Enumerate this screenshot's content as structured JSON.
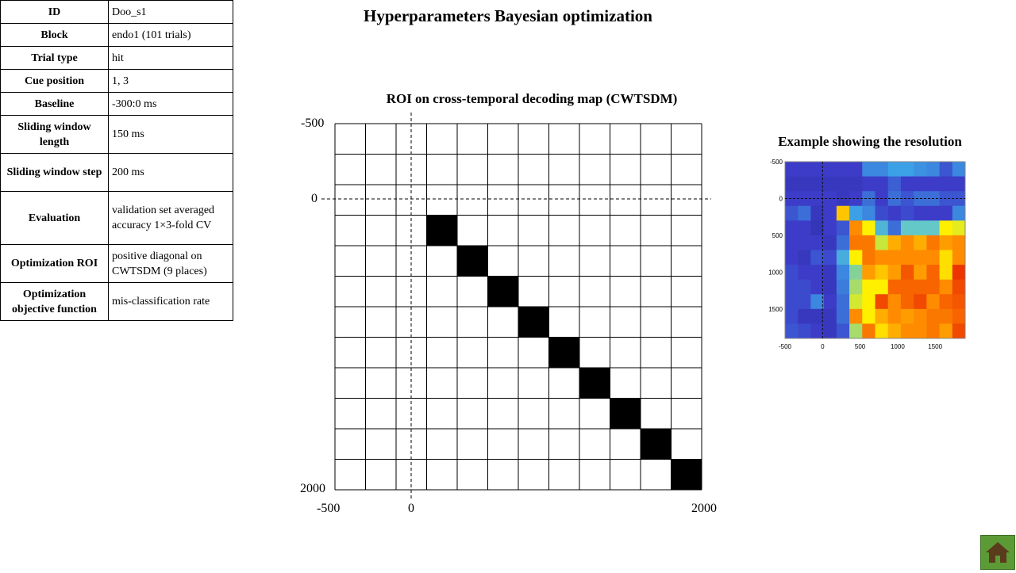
{
  "title": "Hyperparameters Bayesian optimization",
  "params": [
    {
      "key": "ID",
      "value": "Doo_s1"
    },
    {
      "key": "Block",
      "value": "endo1 (101 trials)"
    },
    {
      "key": "Trial type",
      "value": "hit"
    },
    {
      "key": "Cue position",
      "value": "1, 3"
    },
    {
      "key": "Baseline",
      "value": "-300:0 ms"
    },
    {
      "key": "Sliding window length",
      "value": "150 ms"
    },
    {
      "key": "Sliding window step",
      "value": "200 ms"
    },
    {
      "key": "Evaluation",
      "value": "validation set averaged accuracy 1×3-fold CV"
    },
    {
      "key": "Optimization ROI",
      "value": "positive diagonal on CWTSDM (9 places)"
    },
    {
      "key": "Optimization objective function",
      "value": "mis-classification rate"
    }
  ],
  "roi_map": {
    "title": "ROI on cross-temporal decoding map (CWTSDM)",
    "y_top": "-500",
    "y_zero": "0",
    "y_bottom": "2000",
    "x_left": "-500",
    "x_zero": "0",
    "x_right": "2000",
    "rows": 12,
    "cols": 12,
    "roi_cells": [
      [
        3,
        3
      ],
      [
        4,
        4
      ],
      [
        5,
        5
      ],
      [
        6,
        6
      ],
      [
        7,
        7
      ],
      [
        8,
        8
      ],
      [
        9,
        9
      ],
      [
        10,
        10
      ],
      [
        11,
        11
      ]
    ]
  },
  "resolution_example": {
    "title": "Example showing the resolution",
    "y_ticks": [
      "-500",
      "0",
      "500",
      "1000",
      "1500"
    ],
    "x_ticks": [
      "-500",
      "0",
      "500",
      "1000",
      "1500"
    ],
    "grid": [
      [
        0.15,
        0.15,
        0.15,
        0.15,
        0.15,
        0.15,
        0.3,
        0.3,
        0.35,
        0.35,
        0.32,
        0.3,
        0.2,
        0.3
      ],
      [
        0.12,
        0.12,
        0.12,
        0.12,
        0.12,
        0.12,
        0.15,
        0.15,
        0.22,
        0.15,
        0.15,
        0.15,
        0.15,
        0.15
      ],
      [
        0.15,
        0.15,
        0.15,
        0.15,
        0.12,
        0.15,
        0.25,
        0.15,
        0.25,
        0.2,
        0.25,
        0.25,
        0.2,
        0.2
      ],
      [
        0.2,
        0.25,
        0.12,
        0.15,
        0.75,
        0.35,
        0.3,
        0.18,
        0.15,
        0.18,
        0.15,
        0.15,
        0.15,
        0.3
      ],
      [
        0.15,
        0.15,
        0.1,
        0.15,
        0.2,
        0.82,
        0.7,
        0.4,
        0.25,
        0.45,
        0.45,
        0.45,
        0.7,
        0.65
      ],
      [
        0.15,
        0.15,
        0.15,
        0.12,
        0.25,
        0.85,
        0.85,
        0.6,
        0.78,
        0.82,
        0.78,
        0.85,
        0.8,
        0.82
      ],
      [
        0.15,
        0.12,
        0.2,
        0.18,
        0.38,
        0.7,
        0.85,
        0.82,
        0.82,
        0.82,
        0.82,
        0.82,
        0.72,
        0.82
      ],
      [
        0.18,
        0.15,
        0.15,
        0.12,
        0.3,
        0.5,
        0.8,
        0.75,
        0.8,
        0.9,
        0.8,
        0.88,
        0.72,
        0.95
      ],
      [
        0.18,
        0.18,
        0.15,
        0.12,
        0.28,
        0.55,
        0.7,
        0.7,
        0.88,
        0.88,
        0.88,
        0.88,
        0.82,
        0.92
      ],
      [
        0.18,
        0.18,
        0.3,
        0.15,
        0.25,
        0.62,
        0.7,
        0.92,
        0.82,
        0.88,
        0.92,
        0.82,
        0.88,
        0.9
      ],
      [
        0.18,
        0.12,
        0.12,
        0.12,
        0.25,
        0.82,
        0.7,
        0.78,
        0.82,
        0.8,
        0.82,
        0.85,
        0.85,
        0.88
      ],
      [
        0.2,
        0.18,
        0.15,
        0.12,
        0.2,
        0.55,
        0.85,
        0.72,
        0.78,
        0.82,
        0.82,
        0.85,
        0.8,
        0.92
      ]
    ]
  },
  "home_icon": "home-icon"
}
